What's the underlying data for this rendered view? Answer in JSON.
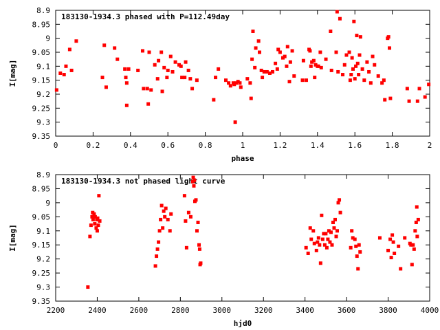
{
  "chart_data": [
    {
      "type": "scatter",
      "title": "183130-1934.3 phased with P=112.49day",
      "xlabel": "phase",
      "ylabel": "I[mag]",
      "xlim": [
        0,
        2
      ],
      "ylim": [
        8.9,
        9.35
      ],
      "y_inverted": true,
      "xticks": [
        "0",
        "0.2",
        "0.4",
        "0.6",
        "0.8",
        "1",
        "1.2",
        "1.4",
        "1.6",
        "1.8",
        "2"
      ],
      "yticks": [
        "8.9",
        "8.95",
        "9",
        "9.05",
        "9.1",
        "9.15",
        "9.2",
        "9.25",
        "9.3",
        "9.35"
      ],
      "marker_color": "#ff0000",
      "grid": false,
      "series": [
        {
          "points": [
            [
              0.005,
              9.185
            ],
            [
              0.025,
              9.125
            ],
            [
              0.045,
              9.13
            ],
            [
              0.055,
              9.1
            ],
            [
              0.075,
              9.04
            ],
            [
              0.085,
              9.115
            ],
            [
              0.11,
              9.01
            ],
            [
              0.25,
              9.14
            ],
            [
              0.26,
              9.025
            ],
            [
              0.27,
              9.175
            ],
            [
              0.315,
              9.035
            ],
            [
              0.33,
              9.075
            ],
            [
              0.37,
              9.11
            ],
            [
              0.375,
              9.14
            ],
            [
              0.38,
              9.16
            ],
            [
              0.38,
              9.24
            ],
            [
              0.39,
              9.11
            ],
            [
              0.44,
              9.115
            ],
            [
              0.465,
              9.045
            ],
            [
              0.47,
              9.18
            ],
            [
              0.49,
              9.18
            ],
            [
              0.495,
              9.235
            ],
            [
              0.5,
              9.05
            ],
            [
              0.51,
              9.185
            ],
            [
              0.53,
              9.095
            ],
            [
              0.545,
              9.145
            ],
            [
              0.55,
              9.08
            ],
            [
              0.565,
              9.05
            ],
            [
              0.57,
              9.19
            ],
            [
              0.58,
              9.105
            ],
            [
              0.595,
              9.14
            ],
            [
              0.6,
              9.115
            ],
            [
              0.615,
              9.065
            ],
            [
              0.625,
              9.12
            ],
            [
              0.64,
              9.085
            ],
            [
              0.66,
              9.095
            ],
            [
              0.67,
              9.1
            ],
            [
              0.675,
              9.14
            ],
            [
              0.69,
              9.14
            ],
            [
              0.695,
              9.085
            ],
            [
              0.71,
              9.115
            ],
            [
              0.72,
              9.145
            ],
            [
              0.73,
              9.18
            ],
            [
              0.755,
              9.15
            ],
            [
              0.845,
              9.22
            ],
            [
              0.855,
              9.14
            ],
            [
              0.87,
              9.11
            ],
            [
              0.91,
              9.15
            ],
            [
              0.925,
              9.16
            ],
            [
              0.935,
              9.17
            ],
            [
              0.95,
              9.16
            ],
            [
              0.955,
              9.165
            ],
            [
              0.96,
              9.3
            ],
            [
              0.965,
              9.16
            ],
            [
              0.975,
              9.155
            ],
            [
              0.985,
              9.16
            ],
            [
              0.99,
              9.175
            ],
            [
              1.025,
              9.145
            ],
            [
              1.04,
              9.16
            ],
            [
              1.045,
              9.215
            ],
            [
              1.05,
              9.075
            ],
            [
              1.055,
              8.975
            ],
            [
              1.065,
              9.105
            ],
            [
              1.07,
              9.035
            ],
            [
              1.085,
              9.01
            ],
            [
              1.09,
              9.05
            ],
            [
              1.1,
              9.115
            ],
            [
              1.105,
              9.14
            ],
            [
              1.115,
              9.12
            ],
            [
              1.13,
              9.12
            ],
            [
              1.145,
              9.125
            ],
            [
              1.16,
              9.12
            ],
            [
              1.175,
              9.09
            ],
            [
              1.185,
              9.11
            ],
            [
              1.19,
              9.04
            ],
            [
              1.2,
              9.05
            ],
            [
              1.215,
              9.07
            ],
            [
              1.225,
              9.065
            ],
            [
              1.235,
              9.1
            ],
            [
              1.24,
              9.03
            ],
            [
              1.25,
              9.155
            ],
            [
              1.255,
              9.085
            ],
            [
              1.265,
              9.045
            ],
            [
              1.275,
              9.135
            ],
            [
              1.32,
              9.15
            ],
            [
              1.325,
              9.08
            ],
            [
              1.34,
              9.15
            ],
            [
              1.355,
              9.04
            ],
            [
              1.36,
              9.045
            ],
            [
              1.365,
              9.1
            ],
            [
              1.37,
              9.085
            ],
            [
              1.38,
              9.08
            ],
            [
              1.385,
              9.14
            ],
            [
              1.39,
              9.095
            ],
            [
              1.4,
              9.1
            ],
            [
              1.405,
              9.1
            ],
            [
              1.415,
              9.05
            ],
            [
              1.42,
              9.105
            ],
            [
              1.445,
              9.075
            ],
            [
              1.47,
              8.975
            ],
            [
              1.475,
              9.115
            ],
            [
              1.5,
              9.05
            ],
            [
              1.505,
              8.905
            ],
            [
              1.51,
              9.12
            ],
            [
              1.52,
              8.93
            ],
            [
              1.535,
              9.13
            ],
            [
              1.545,
              9.095
            ],
            [
              1.555,
              9.06
            ],
            [
              1.57,
              9.05
            ],
            [
              1.575,
              9.15
            ],
            [
              1.58,
              9.13
            ],
            [
              1.585,
              9.07
            ],
            [
              1.59,
              9.11
            ],
            [
              1.595,
              8.94
            ],
            [
              1.6,
              9.145
            ],
            [
              1.605,
              9.1
            ],
            [
              1.61,
              8.99
            ],
            [
              1.615,
              9.09
            ],
            [
              1.62,
              9.13
            ],
            [
              1.625,
              9.06
            ],
            [
              1.63,
              8.995
            ],
            [
              1.64,
              9.11
            ],
            [
              1.65,
              9.15
            ],
            [
              1.665,
              9.085
            ],
            [
              1.675,
              9.12
            ],
            [
              1.685,
              9.16
            ],
            [
              1.695,
              9.065
            ],
            [
              1.705,
              9.095
            ],
            [
              1.725,
              9.135
            ],
            [
              1.745,
              9.16
            ],
            [
              1.755,
              9.15
            ],
            [
              1.76,
              9.22
            ],
            [
              1.775,
              9.0
            ],
            [
              1.78,
              8.995
            ],
            [
              1.785,
              9.035
            ],
            [
              1.79,
              9.215
            ],
            [
              1.88,
              9.18
            ],
            [
              1.89,
              9.225
            ],
            [
              1.935,
              9.225
            ],
            [
              1.945,
              9.18
            ],
            [
              1.975,
              9.21
            ],
            [
              1.995,
              9.165
            ]
          ]
        }
      ]
    },
    {
      "type": "scatter",
      "title": "183130-1934.3 not phased light curve",
      "xlabel": "hjd0",
      "ylabel": "I[mag]",
      "xlim": [
        2200,
        4000
      ],
      "ylim": [
        8.9,
        9.35
      ],
      "y_inverted": true,
      "xticks": [
        "2200",
        "2400",
        "2600",
        "2800",
        "3000",
        "3200",
        "3400",
        "3600",
        "3800",
        "4000"
      ],
      "yticks": [
        "8.9",
        "8.95",
        "9",
        "9.05",
        "9.1",
        "9.15",
        "9.2",
        "9.25",
        "9.3",
        "9.35"
      ],
      "marker_color": "#ff0000",
      "grid": false,
      "series": [
        {
          "points": [
            [
              2355,
              9.3
            ],
            [
              2365,
              9.12
            ],
            [
              2370,
              9.08
            ],
            [
              2375,
              9.05
            ],
            [
              2378,
              9.035
            ],
            [
              2380,
              9.06
            ],
            [
              2385,
              9.04
            ],
            [
              2388,
              9.075
            ],
            [
              2390,
              9.05
            ],
            [
              2395,
              9.09
            ],
            [
              2398,
              9.06
            ],
            [
              2400,
              9.1
            ],
            [
              2402,
              9.055
            ],
            [
              2405,
              9.08
            ],
            [
              2408,
              8.975
            ],
            [
              2412,
              9.065
            ],
            [
              2680,
              9.225
            ],
            [
              2685,
              9.19
            ],
            [
              2690,
              9.165
            ],
            [
              2695,
              9.14
            ],
            [
              2700,
              9.1
            ],
            [
              2705,
              9.06
            ],
            [
              2710,
              9.01
            ],
            [
              2715,
              9.09
            ],
            [
              2720,
              9.03
            ],
            [
              2725,
              9.05
            ],
            [
              2730,
              9.02
            ],
            [
              2740,
              9.06
            ],
            [
              2750,
              9.1
            ],
            [
              2755,
              9.04
            ],
            [
              2820,
              8.975
            ],
            [
              2825,
              9.065
            ],
            [
              2830,
              9.16
            ],
            [
              2840,
              9.035
            ],
            [
              2850,
              9.05
            ],
            [
              2860,
              8.925
            ],
            [
              2862,
              8.91
            ],
            [
              2865,
              8.94
            ],
            [
              2868,
              8.92
            ],
            [
              2870,
              8.995
            ],
            [
              2875,
              8.99
            ],
            [
              2880,
              9.1
            ],
            [
              2885,
              9.07
            ],
            [
              2890,
              9.15
            ],
            [
              2893,
              9.165
            ],
            [
              2895,
              9.22
            ],
            [
              2898,
              9.215
            ],
            [
              3405,
              9.16
            ],
            [
              3415,
              9.18
            ],
            [
              3425,
              9.09
            ],
            [
              3430,
              9.13
            ],
            [
              3440,
              9.1
            ],
            [
              3445,
              9.145
            ],
            [
              3455,
              9.17
            ],
            [
              3460,
              9.14
            ],
            [
              3465,
              9.125
            ],
            [
              3470,
              9.15
            ],
            [
              3475,
              9.215
            ],
            [
              3480,
              9.045
            ],
            [
              3485,
              9.13
            ],
            [
              3490,
              9.11
            ],
            [
              3495,
              9.15
            ],
            [
              3500,
              9.11
            ],
            [
              3505,
              9.16
            ],
            [
              3510,
              9.13
            ],
            [
              3515,
              9.1
            ],
            [
              3520,
              9.14
            ],
            [
              3525,
              9.105
            ],
            [
              3530,
              9.15
            ],
            [
              3535,
              9.07
            ],
            [
              3540,
              9.09
            ],
            [
              3545,
              9.06
            ],
            [
              3550,
              9.12
            ],
            [
              3555,
              9.1
            ],
            [
              3560,
              9.0
            ],
            [
              3565,
              8.99
            ],
            [
              3570,
              9.035
            ],
            [
              3620,
              9.16
            ],
            [
              3625,
              9.1
            ],
            [
              3630,
              9.125
            ],
            [
              3640,
              9.13
            ],
            [
              3645,
              9.155
            ],
            [
              3650,
              9.19
            ],
            [
              3655,
              9.235
            ],
            [
              3660,
              9.15
            ],
            [
              3665,
              9.175
            ],
            [
              3760,
              9.125
            ],
            [
              3800,
              9.17
            ],
            [
              3810,
              9.13
            ],
            [
              3815,
              9.195
            ],
            [
              3820,
              9.115
            ],
            [
              3825,
              9.14
            ],
            [
              3830,
              9.18
            ],
            [
              3850,
              9.155
            ],
            [
              3860,
              9.235
            ],
            [
              3880,
              9.125
            ],
            [
              3905,
              9.145
            ],
            [
              3910,
              9.15
            ],
            [
              3915,
              9.22
            ],
            [
              3920,
              9.15
            ],
            [
              3925,
              9.165
            ],
            [
              3930,
              9.1
            ],
            [
              3935,
              9.07
            ],
            [
              3938,
              9.015
            ],
            [
              3940,
              9.12
            ],
            [
              3945,
              9.06
            ]
          ]
        }
      ]
    }
  ]
}
